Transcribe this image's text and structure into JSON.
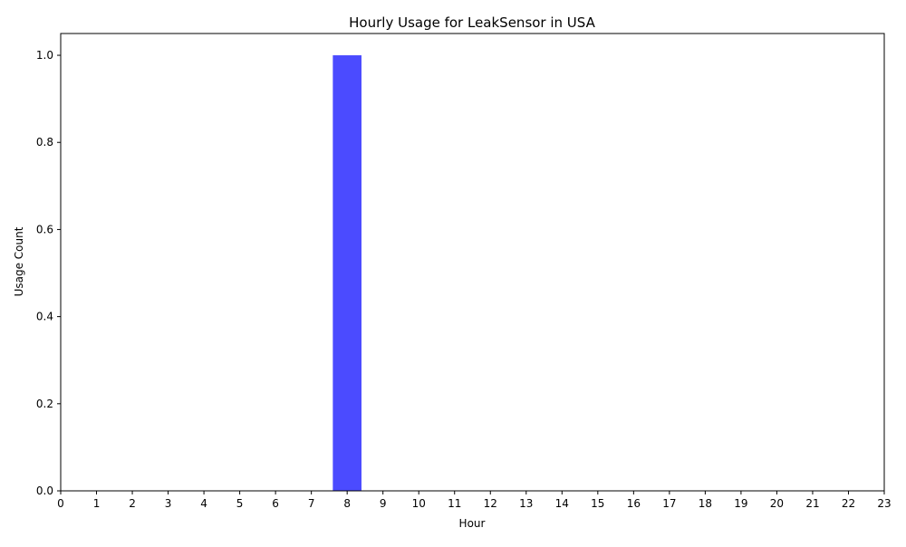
{
  "chart_data": {
    "type": "bar",
    "title": "Hourly Usage for LeakSensor in USA",
    "xlabel": "Hour",
    "ylabel": "Usage Count",
    "x_ticks": [
      "0",
      "1",
      "2",
      "3",
      "4",
      "5",
      "6",
      "7",
      "8",
      "9",
      "10",
      "11",
      "12",
      "13",
      "14",
      "15",
      "16",
      "17",
      "18",
      "19",
      "20",
      "21",
      "22",
      "23"
    ],
    "y_ticks": [
      "0.0",
      "0.2",
      "0.4",
      "0.6",
      "0.8",
      "1.0"
    ],
    "categories": [
      8
    ],
    "values": [
      1
    ],
    "xlim": [
      0,
      23
    ],
    "ylim": [
      0,
      1.05
    ],
    "grid": false,
    "bar_color": "#4b4bff"
  }
}
